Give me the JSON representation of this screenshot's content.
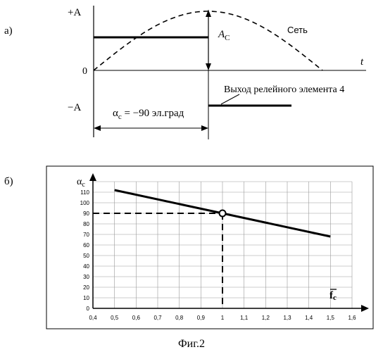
{
  "figure_caption": "Фиг.2",
  "panel_a": {
    "label": "а)",
    "y_plus": "+A",
    "y_minus": "−A",
    "y_zero": "0",
    "x_axis": "t",
    "amplitude_label": "A",
    "amplitude_sub": "C",
    "sine_label": "Сеть",
    "relay_label": "Выход релейного элемента 4",
    "alpha_sym": "α",
    "alpha_sub": "c",
    "alpha_text": " = −90 эл.град"
  },
  "panel_b": {
    "label": "б)",
    "y_sym": "α",
    "y_sub": "c",
    "x_sym": "f",
    "x_sub": "c"
  },
  "chart_data": {
    "type": "line",
    "x_ticks": [
      "0,4",
      "0,5",
      "0,6",
      "0,7",
      "0,8",
      "0,9",
      "1",
      "1,1",
      "1,2",
      "1,3",
      "1,4",
      "1,5",
      "1,6"
    ],
    "y_ticks": [
      "0",
      "10",
      "20",
      "30",
      "40",
      "50",
      "60",
      "70",
      "80",
      "90",
      "100",
      "110"
    ],
    "xlim": [
      0.4,
      1.6
    ],
    "ylim": [
      0,
      120
    ],
    "grid": true,
    "series": [
      {
        "x": [
          0.5,
          1.0,
          1.5
        ],
        "y": [
          112,
          90,
          68
        ]
      }
    ],
    "marked_point": {
      "x": 1.0,
      "y": 90
    }
  }
}
